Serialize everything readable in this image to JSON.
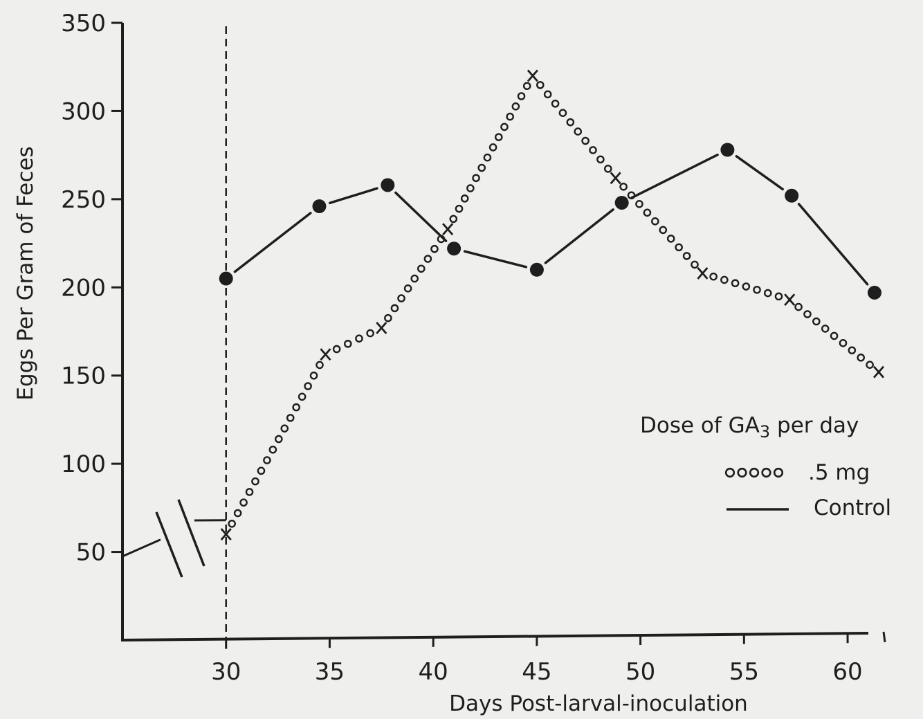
{
  "chart_data": {
    "type": "line",
    "title": "",
    "xlabel": "Days Post-larval-inoculation",
    "ylabel": "Eggs Per Gram of Feces",
    "xlim": [
      25,
      61
    ],
    "ylim": [
      0,
      350
    ],
    "y_axis_break": true,
    "x_ticks": [
      30,
      35,
      40,
      45,
      50,
      55,
      60
    ],
    "y_ticks": [
      50,
      100,
      150,
      200,
      250,
      300,
      350
    ],
    "x_tick_labels": [
      "30",
      "35",
      "40",
      "45",
      "50",
      "55",
      "60"
    ],
    "y_tick_labels": [
      "50",
      "100",
      "150",
      "200",
      "250",
      "300",
      "350"
    ],
    "reference_line_x": 30,
    "grid": false,
    "legend": {
      "title_main": "Dose of GA",
      "title_sub": "3",
      "title_end": " per day",
      "placement": "right",
      "entries": [
        {
          "symbol_text": "ooooo",
          "label": ".5 mg"
        },
        {
          "symbol_text": "",
          "label": "Control"
        }
      ]
    },
    "series": [
      {
        "name": ".5 mg",
        "style": "circles",
        "color": "#1e1e1e",
        "x": [
          30,
          34.8,
          37.5,
          40.7,
          44.8,
          48.8,
          53.0,
          57.2,
          61.5
        ],
        "y": [
          60,
          162,
          177,
          233,
          320,
          262,
          208,
          193,
          152
        ]
      },
      {
        "name": "Control",
        "style": "solid-dots",
        "color": "#1e1e1e",
        "x": [
          30,
          34.5,
          37.8,
          41.0,
          45.0,
          49.1,
          54.2,
          57.3,
          61.3
        ],
        "y": [
          205,
          246,
          258,
          222,
          210,
          248,
          278,
          252,
          197
        ]
      }
    ]
  }
}
